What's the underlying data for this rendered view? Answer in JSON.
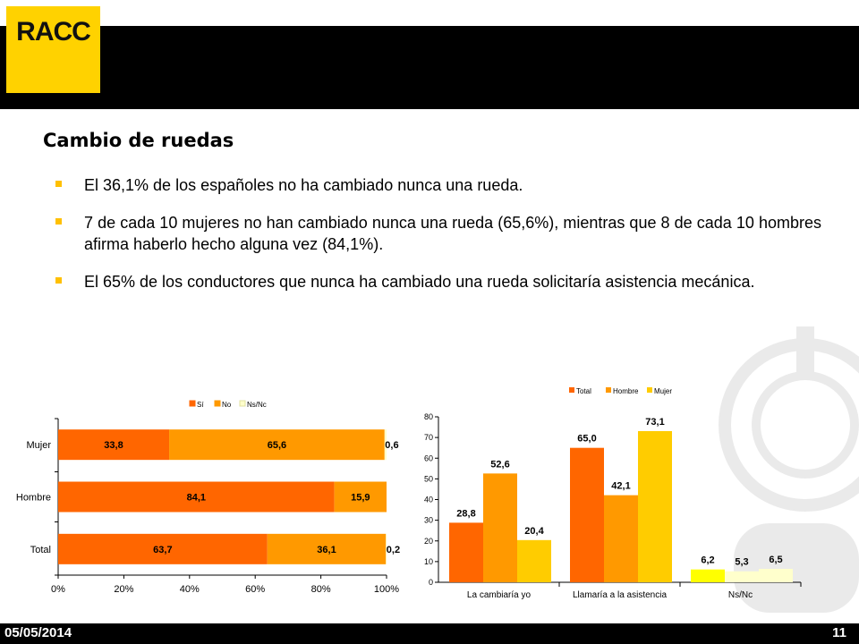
{
  "header": {
    "logo_text": "RACC"
  },
  "slide": {
    "title": "Cambio de ruedas",
    "bullets": [
      "El 36,1% de los españoles no ha cambiado nunca una rueda.",
      "7 de cada 10 mujeres no han cambiado nunca una rueda (65,6%), mientras que 8 de cada 10 hombres afirma haberlo hecho alguna vez (84,1%).",
      "El 65% de los conductores que nunca ha cambiado una rueda solicitaría asistencia mecánica."
    ]
  },
  "footer": {
    "date": "05/05/2014",
    "page": "11"
  },
  "colors": {
    "orange_dark": "#ff6600",
    "orange_mid": "#ff9900",
    "yellow": "#ffcc00",
    "pale": "#ffffcc",
    "bright_yellow": "#ffff00",
    "brand_yellow": "#ffd200"
  },
  "chart_data": [
    {
      "type": "bar",
      "orientation": "horizontal",
      "stacked": true,
      "categories": [
        "Mujer",
        "Hombre",
        "Total"
      ],
      "series": [
        {
          "name": "Sí",
          "values": [
            33.8,
            84.1,
            63.7
          ],
          "labels": [
            "33,8",
            "84,1",
            "63,7"
          ],
          "color": "#ff6600"
        },
        {
          "name": "No",
          "values": [
            65.6,
            15.9,
            36.1
          ],
          "labels": [
            "65,6",
            "15,9",
            "36,1"
          ],
          "color": "#ff9900"
        },
        {
          "name": "Ns/Nc",
          "values": [
            0.6,
            0,
            0.2
          ],
          "labels": [
            "0,6",
            "",
            "0,2"
          ],
          "color": "#ffffcc"
        }
      ],
      "xlim": [
        0,
        100
      ],
      "xticks": [
        "0%",
        "20%",
        "40%",
        "60%",
        "80%",
        "100%"
      ],
      "legend": "top"
    },
    {
      "type": "bar",
      "categories": [
        "La cambiaría yo",
        "Llamaría a la asistencia",
        "Ns/Nc"
      ],
      "series": [
        {
          "name": "Total",
          "values": [
            28.8,
            65.0,
            6.2
          ],
          "labels": [
            "28,8",
            "65,0",
            "6,2"
          ],
          "color": "#ff6600"
        },
        {
          "name": "Hombre",
          "values": [
            52.6,
            42.1,
            5.3
          ],
          "labels": [
            "52,6",
            "42,1",
            "5,3"
          ],
          "color": "#ff9900"
        },
        {
          "name": "Mujer",
          "values": [
            20.4,
            73.1,
            6.5
          ],
          "labels": [
            "20,4",
            "73,1",
            "6,5"
          ],
          "color": "#ffcc00"
        }
      ],
      "ylim": [
        0,
        80
      ],
      "yticks": [
        "0",
        "10",
        "20",
        "30",
        "40",
        "50",
        "60",
        "70",
        "80"
      ],
      "legend": "top"
    }
  ]
}
